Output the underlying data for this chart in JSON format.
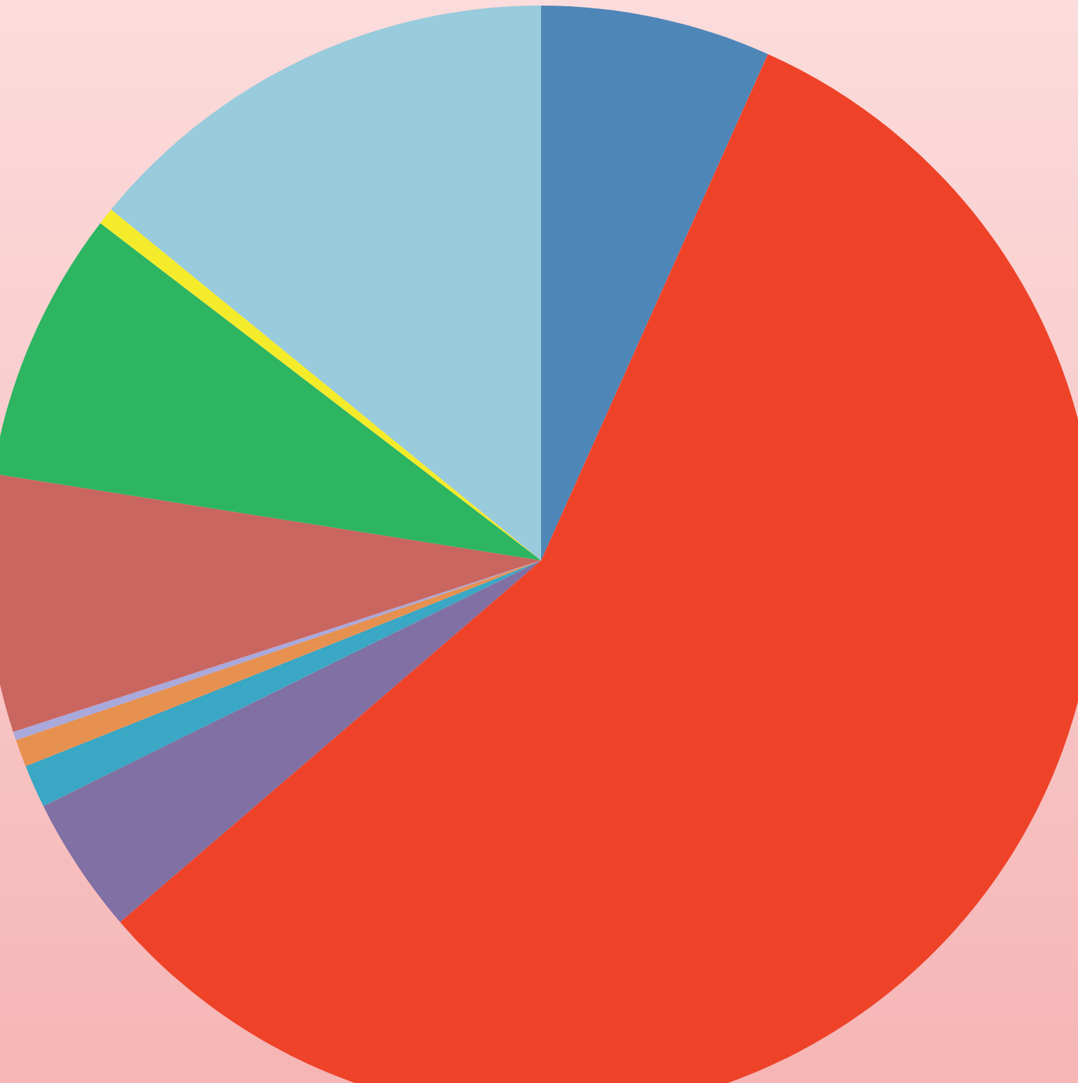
{
  "chart_data": {
    "type": "pie",
    "categories": [
      null,
      null,
      null,
      null,
      null,
      null,
      null,
      null,
      null,
      null
    ],
    "values": [
      6.7,
      57.0,
      4.0,
      1.25,
      0.8,
      0.25,
      7.5,
      7.9,
      0.5,
      14.1
    ],
    "colors": [
      "#4f86b8",
      "#ee4329",
      "#8070a4",
      "#3aa7c4",
      "#e69150",
      "#a9a9dc",
      "#c96660",
      "#2db562",
      "#f4ec2a",
      "#98cbdc"
    ]
  }
}
